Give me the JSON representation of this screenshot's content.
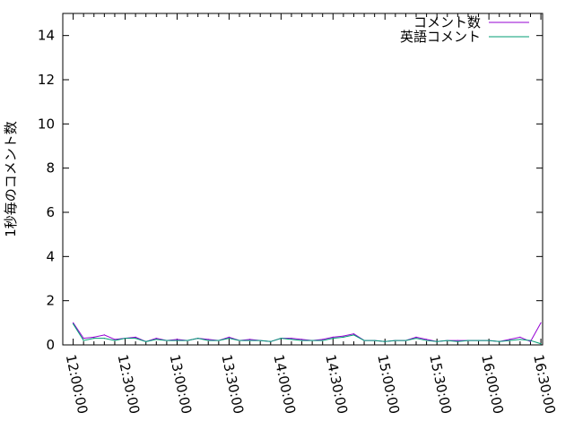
{
  "chart_data": {
    "type": "line",
    "title": "",
    "xlabel": "",
    "ylabel": "1秒毎のコメント数",
    "xlim": [
      "11:54:00",
      "16:31:00"
    ],
    "ylim": [
      0,
      15
    ],
    "yticks": [
      0,
      2,
      4,
      6,
      8,
      10,
      12,
      14
    ],
    "xticks": [
      "12:00:00",
      "12:30:00",
      "13:00:00",
      "13:30:00",
      "14:00:00",
      "14:30:00",
      "15:00:00",
      "15:30:00",
      "16:00:00",
      "16:30:00"
    ],
    "grid": false,
    "legend_placement": "top-right",
    "x": [
      "12:00",
      "12:06",
      "12:12",
      "12:18",
      "12:24",
      "12:30",
      "12:36",
      "12:42",
      "12:48",
      "12:54",
      "13:00",
      "13:06",
      "13:12",
      "13:18",
      "13:24",
      "13:30",
      "13:36",
      "13:42",
      "13:48",
      "13:54",
      "14:00",
      "14:06",
      "14:12",
      "14:18",
      "14:24",
      "14:30",
      "14:36",
      "14:42",
      "14:48",
      "14:54",
      "15:00",
      "15:06",
      "15:12",
      "15:18",
      "15:24",
      "15:30",
      "15:36",
      "15:42",
      "15:48",
      "15:54",
      "16:00",
      "16:06",
      "16:12",
      "16:18",
      "16:24",
      "16:30"
    ],
    "series": [
      {
        "name": "コメント数",
        "color": "#9400d3",
        "values": [
          1.0,
          0.3,
          0.35,
          0.45,
          0.25,
          0.3,
          0.35,
          0.15,
          0.3,
          0.2,
          0.25,
          0.2,
          0.3,
          0.25,
          0.2,
          0.35,
          0.2,
          0.25,
          0.2,
          0.15,
          0.3,
          0.3,
          0.25,
          0.2,
          0.25,
          0.35,
          0.4,
          0.5,
          0.2,
          0.2,
          0.15,
          0.2,
          0.2,
          0.35,
          0.25,
          0.15,
          0.2,
          0.2,
          0.2,
          0.2,
          0.2,
          0.15,
          0.25,
          0.35,
          0.15,
          1.0
        ]
      },
      {
        "name": "英語コメント",
        "color": "#009e73",
        "values": [
          0.95,
          0.2,
          0.3,
          0.3,
          0.2,
          0.3,
          0.3,
          0.15,
          0.25,
          0.2,
          0.2,
          0.2,
          0.3,
          0.2,
          0.2,
          0.3,
          0.2,
          0.2,
          0.2,
          0.15,
          0.3,
          0.25,
          0.2,
          0.2,
          0.2,
          0.3,
          0.35,
          0.45,
          0.2,
          0.2,
          0.15,
          0.2,
          0.2,
          0.3,
          0.2,
          0.15,
          0.2,
          0.15,
          0.2,
          0.2,
          0.2,
          0.15,
          0.2,
          0.25,
          0.2,
          0.05
        ]
      }
    ]
  }
}
